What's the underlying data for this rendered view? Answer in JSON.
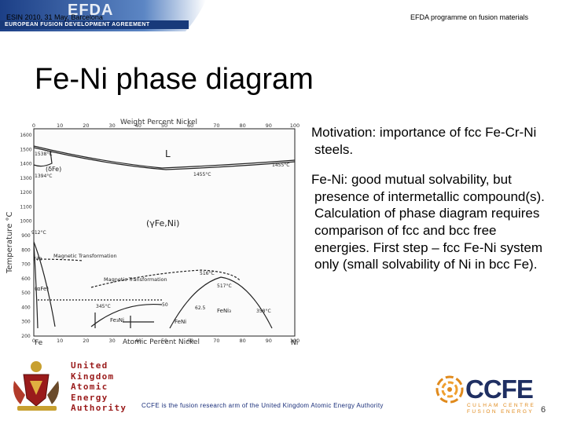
{
  "header": {
    "logo_text": "EFDA",
    "logo_subtitle": "EUROPEAN FUSION DEVELOPMENT AGREEMENT",
    "event": "ESIN 2010, 31 May, Barcelona",
    "programme": "EFDA programme on fusion materials"
  },
  "title": "Fe-Ni phase diagram",
  "bullets": [
    "Motivation: importance of fcc Fe-Cr-Ni steels.",
    "Fe-Ni: good mutual solvability, but presence of intermetallic compound(s). Calculation of phase diagram requires comparison of fcc and bcc free energies. First step – fcc Fe-Ni system only (small solvability of Ni in bcc Fe)."
  ],
  "diagram": {
    "top_axis_title": "Weight Percent Nickel",
    "bottom_axis_title": "Atomic Percent Nickel",
    "y_axis_title": "Temperature °C",
    "top_ticks": [
      "0",
      "10",
      "20",
      "30",
      "40",
      "50",
      "60",
      "70",
      "80",
      "90",
      "100"
    ],
    "bottom_ticks": [
      "0",
      "10",
      "20",
      "30",
      "40",
      "50",
      "60",
      "70",
      "80",
      "90",
      "100"
    ],
    "y_ticks": [
      "1600",
      "1500",
      "1400",
      "1300",
      "1200",
      "1100",
      "1000",
      "900",
      "800",
      "700",
      "600",
      "500",
      "400",
      "300",
      "200"
    ],
    "element_left": "Fe",
    "element_right": "Ni",
    "labels": {
      "liquid": "L",
      "delta_fe": "(δFe)",
      "gamma": "(γFe,Ni)",
      "alpha_fe": "(αFe)",
      "magnetic_1": "Magnetic Transformation",
      "magnetic_2": "Magnetic Transformation",
      "fe3ni": "Fe₃Ni",
      "feni": "FeNi",
      "feni3": "FeNi₃",
      "t1538": "1538°C",
      "t1394": "1394°C",
      "t1455": "1455°C",
      "t1455b": "1455°C",
      "t912": "912°C",
      "t770": "770",
      "t345": "345°C",
      "t517": "517°C",
      "t516": "516°C",
      "t358": "358°C",
      "t62_5": "62.5",
      "t50": "50"
    }
  },
  "footer": {
    "ukaea_lines": [
      "United",
      "Kingdom",
      "Atomic",
      "Energy",
      "Authority"
    ],
    "statement": "CCFE is the fusion research arm of the United Kingdom Atomic Energy Authority",
    "ccfe_logo": "CCFE",
    "ccfe_sub1": "CULHAM CENTRE",
    "ccfe_sub2": "FUSION ENERGY",
    "page_number": "6",
    "colors": {
      "ccfe_navy": "#1f2f62",
      "ccfe_orange": "#e08a1c",
      "ukaea_red": "#9a1b1b",
      "efda_blue": "#1f4f96"
    }
  }
}
